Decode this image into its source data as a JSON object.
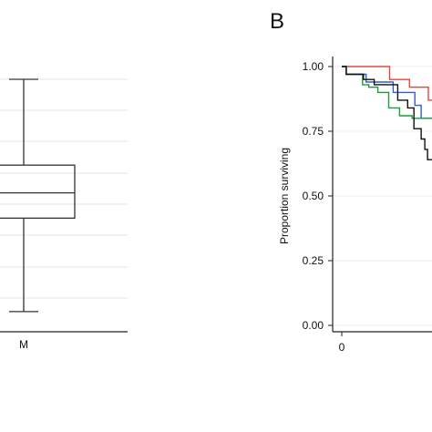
{
  "chart_data": [
    {
      "type": "box",
      "panel_label": "",
      "categories": [
        "M"
      ],
      "grid": true,
      "boxes": [
        {
          "category": "M",
          "whisker_low": 0.08,
          "q1": 0.45,
          "median": 0.55,
          "q3": 0.66,
          "whisker_high": 1.0
        }
      ],
      "ylim": [
        0,
        1.0
      ],
      "note": "y axis ticks are cropped out of the image; values are relative positions within the visible range"
    },
    {
      "type": "line",
      "panel_label": "B",
      "ylabel": "Proportion surviving",
      "y_ticks": [
        "1.00",
        "0.75",
        "0.50",
        "0.25",
        "0.00"
      ],
      "y_tick_values": [
        1.0,
        0.75,
        0.5,
        0.25,
        0.0
      ],
      "x_ticks": [
        "0"
      ],
      "x_tick_values": [
        0
      ],
      "ylim": [
        0,
        1.0
      ],
      "xlim": [
        0,
        10
      ],
      "grid": true,
      "series": [
        {
          "color": "#e8463a",
          "points": [
            [
              0,
              1.0
            ],
            [
              5.3,
              1.0
            ],
            [
              5.3,
              0.95
            ],
            [
              7.5,
              0.95
            ],
            [
              7.5,
              0.92
            ],
            [
              9.6,
              0.92
            ],
            [
              9.6,
              0.87
            ],
            [
              10,
              0.87
            ]
          ]
        },
        {
          "color": "#2f5fd0",
          "points": [
            [
              0,
              1.0
            ],
            [
              0.5,
              1.0
            ],
            [
              0.5,
              0.97
            ],
            [
              2.7,
              0.97
            ],
            [
              2.7,
              0.94
            ],
            [
              5.7,
              0.94
            ],
            [
              5.7,
              0.9
            ],
            [
              8.1,
              0.9
            ],
            [
              8.1,
              0.85
            ],
            [
              8.8,
              0.85
            ],
            [
              8.8,
              0.8
            ],
            [
              10,
              0.8
            ]
          ]
        },
        {
          "color": "#1e9c3a",
          "points": [
            [
              0,
              1.0
            ],
            [
              0.5,
              1.0
            ],
            [
              0.5,
              0.97
            ],
            [
              2.3,
              0.97
            ],
            [
              2.3,
              0.93
            ],
            [
              3.0,
              0.93
            ],
            [
              3.0,
              0.92
            ],
            [
              4.0,
              0.92
            ],
            [
              4.0,
              0.9
            ],
            [
              5.2,
              0.9
            ],
            [
              5.2,
              0.84
            ],
            [
              6.4,
              0.84
            ],
            [
              6.4,
              0.81
            ],
            [
              7.8,
              0.81
            ],
            [
              7.8,
              0.8
            ],
            [
              10,
              0.8
            ]
          ]
        },
        {
          "color": "#111111",
          "points": [
            [
              0,
              1.0
            ],
            [
              0.5,
              1.0
            ],
            [
              0.5,
              0.97
            ],
            [
              1.3,
              0.97
            ],
            [
              1.3,
              0.97
            ],
            [
              2.4,
              0.97
            ],
            [
              2.4,
              0.95
            ],
            [
              3.6,
              0.95
            ],
            [
              3.6,
              0.93
            ],
            [
              6.2,
              0.93
            ],
            [
              6.2,
              0.87
            ],
            [
              7.3,
              0.87
            ],
            [
              7.3,
              0.84
            ],
            [
              8.0,
              0.84
            ],
            [
              8.0,
              0.76
            ],
            [
              8.8,
              0.76
            ],
            [
              8.8,
              0.72
            ],
            [
              9.2,
              0.72
            ],
            [
              9.2,
              0.68
            ],
            [
              9.5,
              0.68
            ],
            [
              9.5,
              0.64
            ],
            [
              10,
              0.64
            ]
          ]
        }
      ]
    }
  ]
}
